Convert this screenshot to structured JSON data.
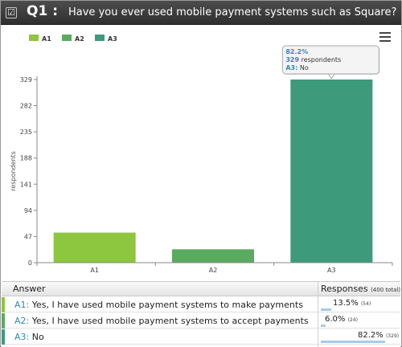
{
  "header": {
    "question_number": "Q1 :",
    "question_text": "Have you ever used mobile payment systems such as Square?",
    "checkbox_glyph": "☑"
  },
  "colors": {
    "a1": "#8dc63f",
    "a2": "#5aaa5f",
    "a3": "#3d9a7a",
    "accent": "#2f89b8"
  },
  "chart_data": {
    "type": "bar",
    "categories": [
      "A1",
      "A2",
      "A3"
    ],
    "values": [
      54,
      24,
      329
    ],
    "ylabel": "respondents",
    "yticks": [
      0,
      47,
      94,
      141,
      188,
      235,
      282,
      329
    ],
    "ylim": [
      0,
      329
    ],
    "legend": [
      {
        "key": "A1",
        "color": "#8dc63f"
      },
      {
        "key": "A2",
        "color": "#5aaa5f"
      },
      {
        "key": "A3",
        "color": "#3d9a7a"
      }
    ],
    "legend_position": "top-left",
    "grid": false,
    "tooltip": {
      "percent": "82.2%",
      "count": "329",
      "count_suffix": " respondents",
      "answer_code": "A3:",
      "answer_text": " No"
    }
  },
  "table": {
    "answer_header": "Answer",
    "responses_header": "Responses",
    "responses_total": "(400 total)",
    "rows": [
      {
        "code": "A1:",
        "text": " Yes, I have used mobile payment systems to make payments",
        "percent": "13.5%",
        "count": "(54)",
        "fraction": 0.135
      },
      {
        "code": "A2:",
        "text": " Yes, I have used mobile payment systems to accept payments",
        "percent": "6.0%",
        "count": "(24)",
        "fraction": 0.06
      },
      {
        "code": "A3:",
        "text": " No",
        "percent": "82.2%",
        "count": "(329)",
        "fraction": 0.822
      }
    ]
  }
}
